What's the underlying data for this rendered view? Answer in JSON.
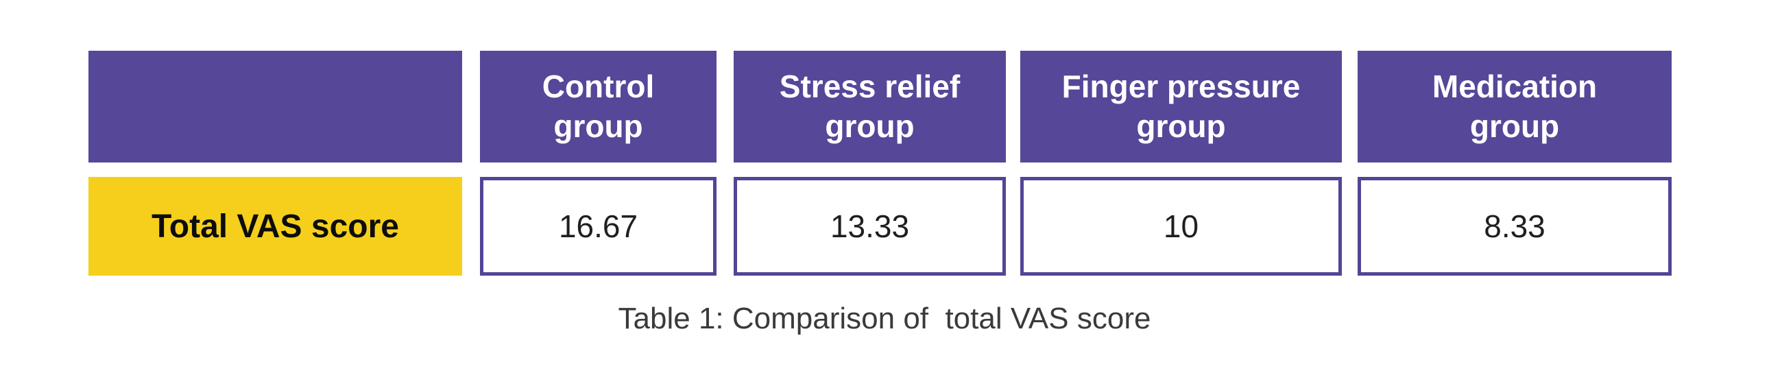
{
  "table": {
    "row_label": "Total VAS score",
    "columns": [
      {
        "header": "Control\ngroup",
        "value": "16.67"
      },
      {
        "header": "Stress relief\ngroup",
        "value": "13.33"
      },
      {
        "header": "Finger pressure\ngroup",
        "value": "10"
      },
      {
        "header": "Medication\ngroup",
        "value": "8.33"
      }
    ]
  },
  "caption": "Table 1: Comparison of  total VAS score",
  "colors": {
    "header_purple": "#564799",
    "cell_border_purple": "#544496",
    "label_yellow": "#F5CF1B",
    "header_text": "#ffffff",
    "value_text": "#1f1f1f",
    "caption_text": "#3a3a3a",
    "background": "#ffffff"
  },
  "chart_data": {
    "type": "table",
    "title": "Table 1: Comparison of  total VAS score",
    "row_label": "Total VAS score",
    "categories": [
      "Control group",
      "Stress relief group",
      "Finger pressure group",
      "Medication group"
    ],
    "values": [
      16.67,
      13.33,
      10,
      8.33
    ]
  }
}
